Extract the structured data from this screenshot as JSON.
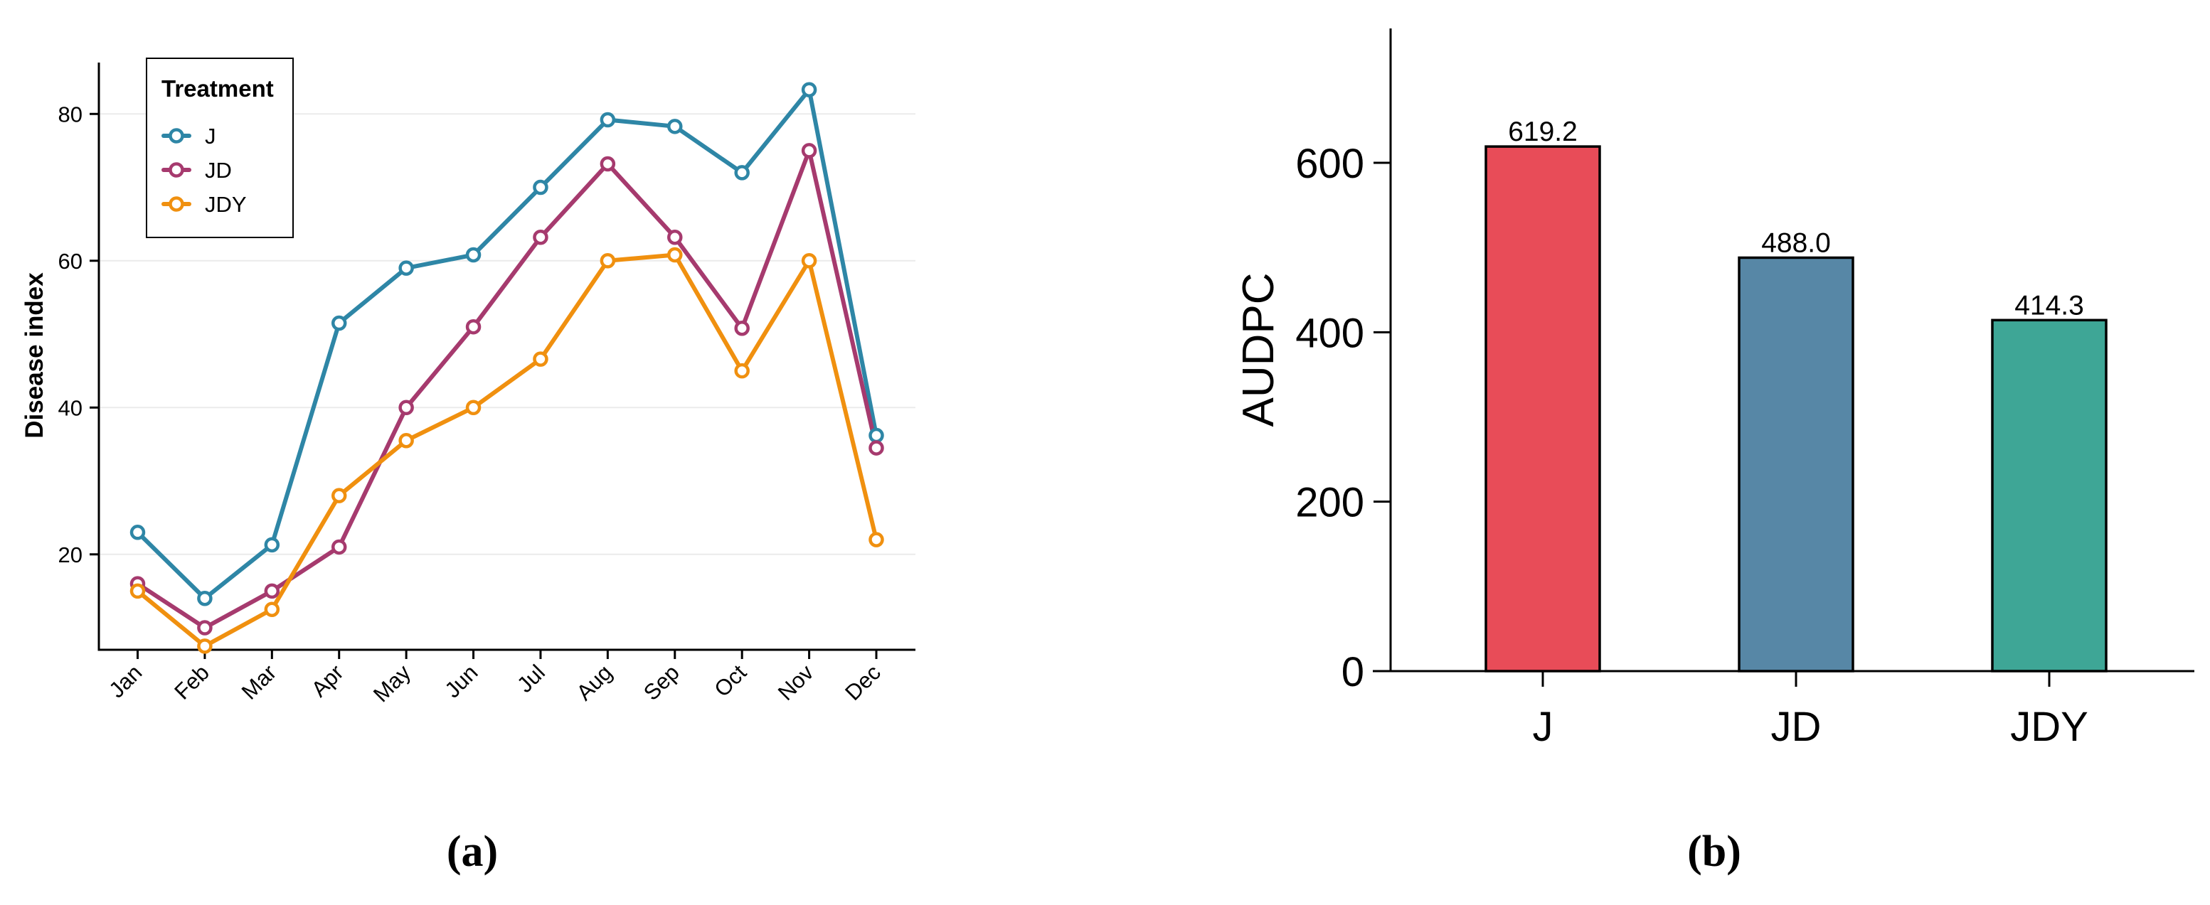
{
  "chart_data": [
    {
      "type": "line",
      "panel_label": "(a)",
      "title": "",
      "xlabel": "",
      "ylabel": "Disease index",
      "ylim": [
        7,
        87
      ],
      "yticks": [
        20,
        40,
        60,
        80
      ],
      "grid": "horizontal",
      "legend": {
        "title": "Treatment",
        "position": "top-left"
      },
      "categories": [
        "Jan",
        "Feb",
        "Mar",
        "Apr",
        "May",
        "Jun",
        "Jul",
        "Aug",
        "Sep",
        "Oct",
        "Nov",
        "Dec"
      ],
      "series": [
        {
          "name": "J",
          "color": "#2E86A6",
          "values": [
            23,
            14,
            21.3,
            51.5,
            59,
            60.8,
            70,
            79.2,
            78.3,
            72,
            83.3,
            36.2
          ]
        },
        {
          "name": "JD",
          "color": "#A63A6E",
          "values": [
            16,
            10,
            15,
            21,
            40,
            51,
            63.2,
            73.2,
            63.2,
            50.8,
            75,
            34.5
          ]
        },
        {
          "name": "JDY",
          "color": "#F0900F",
          "values": [
            15,
            7.5,
            12.5,
            28,
            35.5,
            40,
            46.6,
            60,
            60.8,
            45,
            60,
            22
          ]
        }
      ]
    },
    {
      "type": "bar",
      "panel_label": "(b)",
      "title": "",
      "xlabel": "",
      "ylabel": "AUDPC",
      "ylim": [
        0,
        760
      ],
      "yticks": [
        0,
        200,
        400,
        600
      ],
      "grid": "none",
      "categories": [
        "J",
        "JD",
        "JDY"
      ],
      "values": [
        619.2,
        488.0,
        414.3
      ],
      "value_labels": [
        "619.2",
        "488.0",
        "414.3"
      ],
      "colors": [
        "#E84C58",
        "#5787A6",
        "#3EA696"
      ]
    }
  ]
}
